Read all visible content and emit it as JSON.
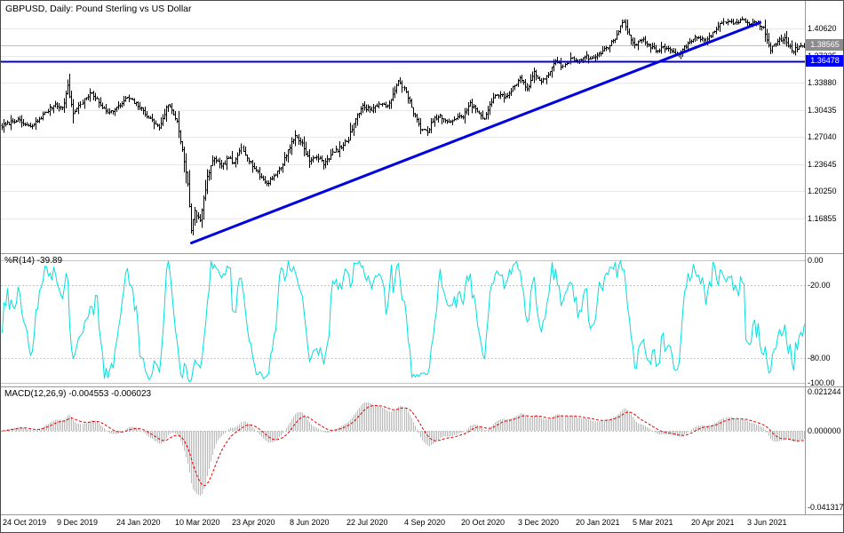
{
  "header": {
    "title": "GBPUSD, Daily:  Pound Sterling vs US Dollar"
  },
  "price_scale": {
    "labels": [
      "1.40620",
      "1.37225",
      "1.33880",
      "1.30435",
      "1.27040",
      "1.23645",
      "1.20250",
      "1.16855"
    ],
    "bid": "1.38565",
    "hline": "1.36478"
  },
  "wpr": {
    "label": "%R(14) -39.89",
    "period": 14,
    "last_value": -39.89,
    "levels": [
      "0.00",
      "-20.00",
      "-80.00",
      "-100.00"
    ]
  },
  "macd": {
    "label": "MACD(12,26,9) -0.004553 -0.006023",
    "fast": 12,
    "slow": 26,
    "signal": 9,
    "last_main": -0.004553,
    "last_signal": -0.006023,
    "scale": [
      "0.021244",
      "0.000000",
      "-0.041317"
    ]
  },
  "time_axis": {
    "labels": [
      {
        "text": "24 Oct 2019",
        "bar": 0
      },
      {
        "text": "9 Dec 2019",
        "bar": 32
      },
      {
        "text": "24 Jan 2020",
        "bar": 65
      },
      {
        "text": "10 Mar 2020",
        "bar": 98
      },
      {
        "text": "23 Apr 2020",
        "bar": 130
      },
      {
        "text": "8 Jun 2020",
        "bar": 162
      },
      {
        "text": "22 Jul 2020",
        "bar": 194
      },
      {
        "text": "4 Sep 2020",
        "bar": 226
      },
      {
        "text": "20 Oct 2020",
        "bar": 258
      },
      {
        "text": "3 Dec 2020",
        "bar": 290
      },
      {
        "text": "20 Jan 2021",
        "bar": 322
      },
      {
        "text": "5 Mar 2021",
        "bar": 354
      },
      {
        "text": "20 Apr 2021",
        "bar": 387
      },
      {
        "text": "3 Jun 2021",
        "bar": 418
      }
    ]
  },
  "chart_data": {
    "type": "candlestick",
    "symbol": "GBPUSD",
    "timeframe": "Daily",
    "title": "GBPUSD, Daily: Pound Sterling vs US Dollar",
    "n_bars": 450,
    "y_gridlines": [
      1.4062,
      1.37225,
      1.3388,
      1.30435,
      1.2704,
      1.23645,
      1.2025,
      1.16855
    ],
    "bid_price": 1.38565,
    "close_anchors": [
      [
        0,
        1.284
      ],
      [
        8,
        1.292
      ],
      [
        16,
        1.282
      ],
      [
        24,
        1.3
      ],
      [
        30,
        1.312
      ],
      [
        34,
        1.306
      ],
      [
        37,
        1.333
      ],
      [
        40,
        1.3
      ],
      [
        44,
        1.312
      ],
      [
        50,
        1.326
      ],
      [
        55,
        1.31
      ],
      [
        60,
        1.301
      ],
      [
        65,
        1.308
      ],
      [
        70,
        1.32
      ],
      [
        76,
        1.31
      ],
      [
        82,
        1.295
      ],
      [
        88,
        1.282
      ],
      [
        93,
        1.312
      ],
      [
        98,
        1.29
      ],
      [
        101,
        1.255
      ],
      [
        104,
        1.21
      ],
      [
        106,
        1.155
      ],
      [
        108,
        1.178
      ],
      [
        111,
        1.165
      ],
      [
        115,
        1.22
      ],
      [
        119,
        1.245
      ],
      [
        123,
        1.232
      ],
      [
        127,
        1.245
      ],
      [
        130,
        1.236
      ],
      [
        134,
        1.258
      ],
      [
        138,
        1.242
      ],
      [
        143,
        1.225
      ],
      [
        148,
        1.212
      ],
      [
        152,
        1.222
      ],
      [
        156,
        1.232
      ],
      [
        160,
        1.254
      ],
      [
        164,
        1.272
      ],
      [
        168,
        1.262
      ],
      [
        172,
        1.24
      ],
      [
        176,
        1.246
      ],
      [
        180,
        1.238
      ],
      [
        185,
        1.25
      ],
      [
        190,
        1.258
      ],
      [
        194,
        1.268
      ],
      [
        198,
        1.295
      ],
      [
        202,
        1.308
      ],
      [
        207,
        1.305
      ],
      [
        211,
        1.312
      ],
      [
        215,
        1.308
      ],
      [
        219,
        1.322
      ],
      [
        222,
        1.34
      ],
      [
        226,
        1.328
      ],
      [
        230,
        1.3
      ],
      [
        234,
        1.282
      ],
      [
        238,
        1.275
      ],
      [
        241,
        1.292
      ],
      [
        245,
        1.296
      ],
      [
        249,
        1.288
      ],
      [
        253,
        1.293
      ],
      [
        258,
        1.297
      ],
      [
        262,
        1.312
      ],
      [
        266,
        1.302
      ],
      [
        270,
        1.294
      ],
      [
        274,
        1.316
      ],
      [
        278,
        1.324
      ],
      [
        282,
        1.32
      ],
      [
        286,
        1.332
      ],
      [
        290,
        1.345
      ],
      [
        294,
        1.33
      ],
      [
        298,
        1.352
      ],
      [
        302,
        1.338
      ],
      [
        306,
        1.35
      ],
      [
        310,
        1.364
      ],
      [
        314,
        1.358
      ],
      [
        318,
        1.368
      ],
      [
        322,
        1.366
      ],
      [
        326,
        1.372
      ],
      [
        330,
        1.368
      ],
      [
        334,
        1.374
      ],
      [
        338,
        1.382
      ],
      [
        342,
        1.39
      ],
      [
        346,
        1.408
      ],
      [
        348,
        1.416
      ],
      [
        351,
        1.396
      ],
      [
        354,
        1.386
      ],
      [
        358,
        1.392
      ],
      [
        362,
        1.386
      ],
      [
        366,
        1.378
      ],
      [
        370,
        1.382
      ],
      [
        374,
        1.38
      ],
      [
        378,
        1.372
      ],
      [
        382,
        1.382
      ],
      [
        386,
        1.392
      ],
      [
        390,
        1.396
      ],
      [
        394,
        1.39
      ],
      [
        398,
        1.4
      ],
      [
        402,
        1.412
      ],
      [
        406,
        1.416
      ],
      [
        410,
        1.412
      ],
      [
        414,
        1.418
      ],
      [
        418,
        1.412
      ],
      [
        422,
        1.414
      ],
      [
        426,
        1.408
      ],
      [
        430,
        1.38
      ],
      [
        434,
        1.39
      ],
      [
        438,
        1.394
      ],
      [
        442,
        1.378
      ],
      [
        446,
        1.382
      ],
      [
        449,
        1.386
      ]
    ],
    "noise": {
      "seed": 7,
      "amp": 0.0045,
      "wick_base": 0.0035,
      "wick_k": 0.9
    },
    "objects": {
      "trendline": {
        "from_bar": 106,
        "from_price": 1.138,
        "to_bar": 424,
        "to_price": 1.4135
      },
      "horizontal_line": 1.36478
    },
    "indicators": [
      {
        "type": "williams_r",
        "period": 14,
        "range": [
          0,
          -100
        ],
        "level_lines": [
          -20,
          -80
        ],
        "last": -39.89
      },
      {
        "type": "macd",
        "fast": 12,
        "slow": 26,
        "signal": 9,
        "range_max": 0.021244,
        "range_min": -0.041317,
        "last_main": -0.004553,
        "last_signal": -0.006023
      }
    ]
  },
  "colors": {
    "background": "#ffffff",
    "bars": "#000000",
    "grid": "#e8e8e8",
    "bid_line": "#c0c0c0",
    "trendline": "#0000e0",
    "hline": "#0000cd",
    "bid_badge_bg": "#8c8c8c",
    "hline_badge_bg": "#0000ff",
    "wpr_line": "#00dede",
    "level_dashed": "#c4c4c4",
    "macd_histogram": "#b9b9b9",
    "macd_signal": "#e00000",
    "divider": "#9a9a9a",
    "text": "#000000"
  }
}
